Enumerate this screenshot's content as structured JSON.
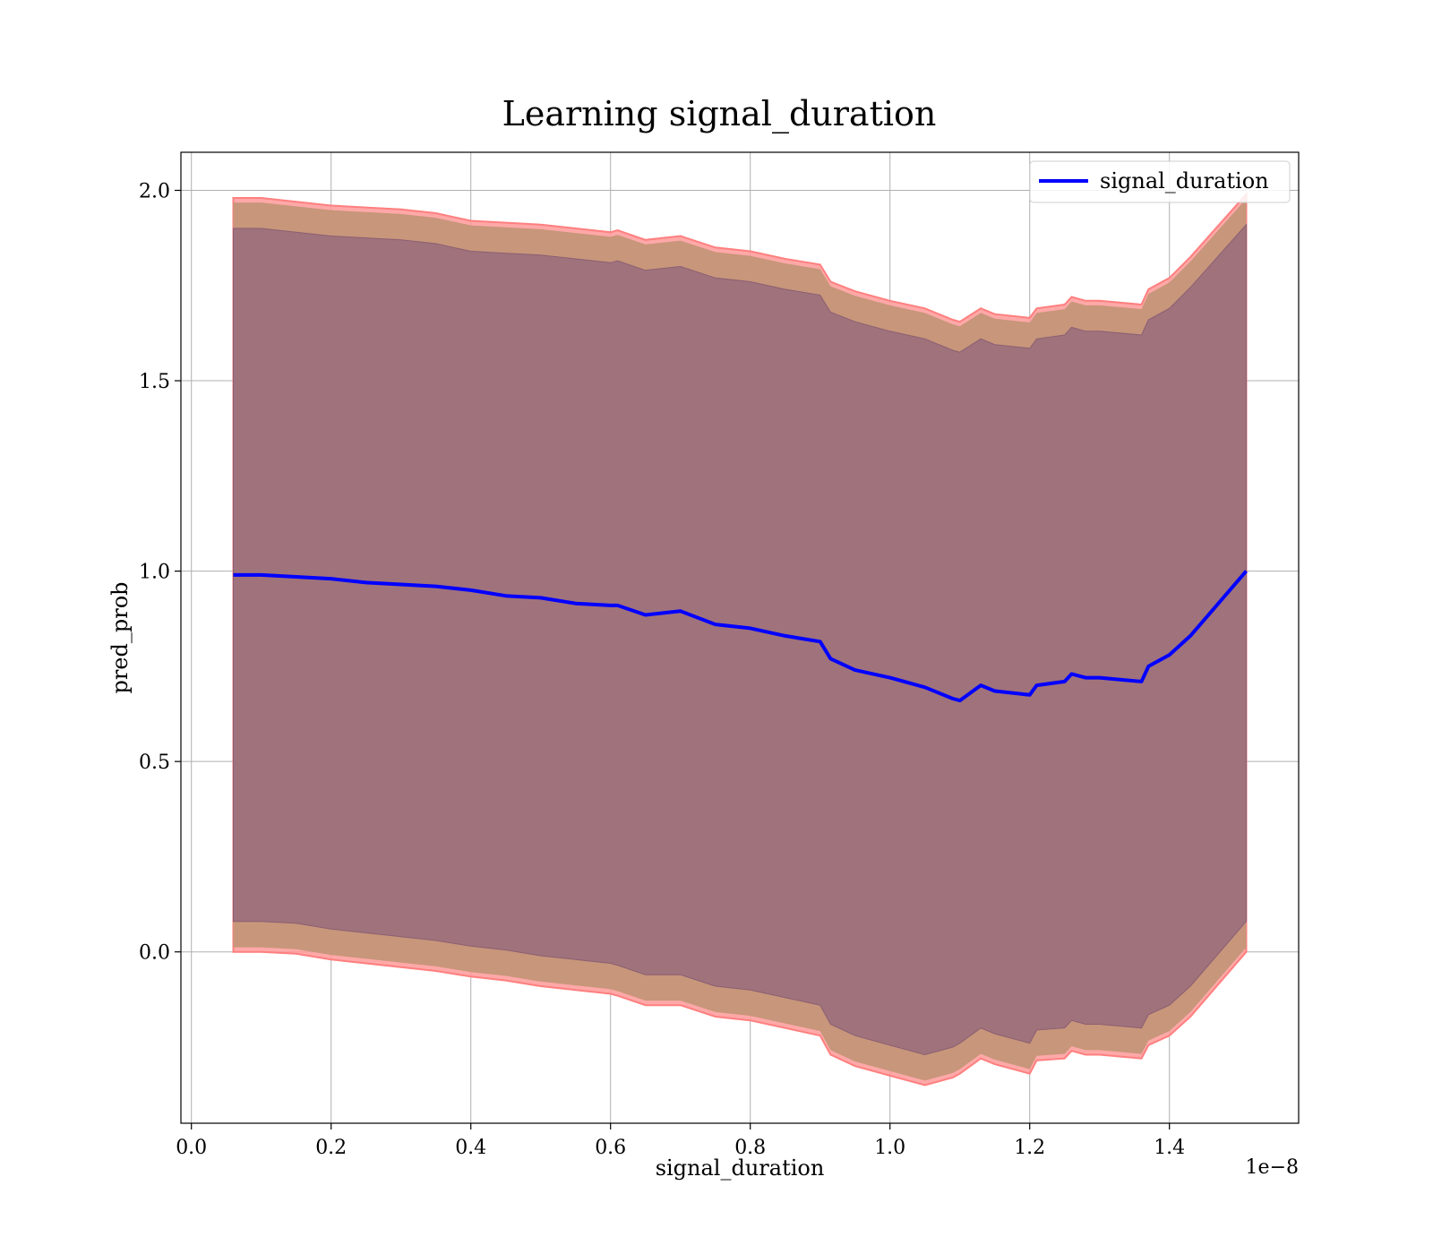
{
  "chart_data": {
    "type": "line",
    "title": "Learning signal_duration",
    "xlabel": "signal_duration",
    "ylabel": "pred_prob",
    "x_offset_label": "1e−8",
    "xlim": [
      -0.015,
      1.585
    ],
    "ylim": [
      -0.45,
      2.1
    ],
    "x_ticks": [
      0.0,
      0.2,
      0.4,
      0.6,
      0.8,
      1.0,
      1.2,
      1.4
    ],
    "x_tick_labels": [
      "0.0",
      "0.2",
      "0.4",
      "0.6",
      "0.8",
      "1.0",
      "1.2",
      "1.4"
    ],
    "y_ticks": [
      0.0,
      0.5,
      1.0,
      1.5,
      2.0
    ],
    "y_tick_labels": [
      "0.0",
      "0.5",
      "1.0",
      "1.5",
      "2.0"
    ],
    "grid": true,
    "legend_position": "top-right",
    "colors": {
      "line": "#0000ff",
      "band_outer": "#ff9999",
      "band_middle": "#c8967a",
      "band_inner": "#a0727c"
    },
    "series": [
      {
        "name": "signal_duration",
        "x": [
          0.06,
          0.1,
          0.15,
          0.2,
          0.25,
          0.3,
          0.35,
          0.4,
          0.45,
          0.5,
          0.55,
          0.6,
          0.61,
          0.65,
          0.7,
          0.75,
          0.8,
          0.85,
          0.9,
          0.915,
          0.95,
          1.0,
          1.05,
          1.09,
          1.1,
          1.13,
          1.15,
          1.2,
          1.21,
          1.25,
          1.26,
          1.28,
          1.3,
          1.36,
          1.37,
          1.4,
          1.43,
          1.51
        ],
        "y": [
          0.99,
          0.99,
          0.985,
          0.98,
          0.97,
          0.965,
          0.96,
          0.95,
          0.935,
          0.93,
          0.915,
          0.91,
          0.91,
          0.885,
          0.895,
          0.86,
          0.85,
          0.83,
          0.815,
          0.77,
          0.74,
          0.72,
          0.695,
          0.665,
          0.66,
          0.7,
          0.685,
          0.675,
          0.7,
          0.71,
          0.73,
          0.72,
          0.72,
          0.71,
          0.75,
          0.78,
          0.83,
          1.0
        ],
        "inner_lower": [
          0.08,
          0.08,
          0.075,
          0.06,
          0.05,
          0.04,
          0.03,
          0.015,
          0.005,
          -0.01,
          -0.02,
          -0.03,
          -0.035,
          -0.06,
          -0.06,
          -0.09,
          -0.1,
          -0.12,
          -0.14,
          -0.19,
          -0.22,
          -0.245,
          -0.27,
          -0.25,
          -0.24,
          -0.2,
          -0.215,
          -0.24,
          -0.205,
          -0.2,
          -0.18,
          -0.19,
          -0.19,
          -0.2,
          -0.165,
          -0.14,
          -0.09,
          0.08
        ],
        "inner_upper": [
          1.9,
          1.9,
          1.89,
          1.88,
          1.875,
          1.87,
          1.86,
          1.84,
          1.835,
          1.83,
          1.82,
          1.81,
          1.815,
          1.79,
          1.8,
          1.77,
          1.76,
          1.74,
          1.725,
          1.68,
          1.655,
          1.63,
          1.61,
          1.58,
          1.575,
          1.61,
          1.595,
          1.585,
          1.61,
          1.62,
          1.64,
          1.63,
          1.63,
          1.62,
          1.66,
          1.69,
          1.745,
          1.91
        ],
        "outer_lower": [
          0.0,
          0.0,
          -0.005,
          -0.02,
          -0.03,
          -0.04,
          -0.05,
          -0.065,
          -0.075,
          -0.09,
          -0.1,
          -0.11,
          -0.115,
          -0.14,
          -0.14,
          -0.17,
          -0.18,
          -0.2,
          -0.22,
          -0.27,
          -0.3,
          -0.325,
          -0.35,
          -0.33,
          -0.32,
          -0.28,
          -0.295,
          -0.32,
          -0.285,
          -0.28,
          -0.26,
          -0.27,
          -0.27,
          -0.28,
          -0.245,
          -0.22,
          -0.17,
          0.0
        ],
        "outer_upper": [
          1.98,
          1.98,
          1.97,
          1.96,
          1.955,
          1.95,
          1.94,
          1.92,
          1.915,
          1.91,
          1.9,
          1.89,
          1.895,
          1.87,
          1.88,
          1.85,
          1.84,
          1.82,
          1.805,
          1.76,
          1.735,
          1.71,
          1.69,
          1.66,
          1.655,
          1.69,
          1.675,
          1.665,
          1.69,
          1.7,
          1.72,
          1.71,
          1.71,
          1.7,
          1.74,
          1.77,
          1.825,
          1.99
        ]
      }
    ]
  }
}
